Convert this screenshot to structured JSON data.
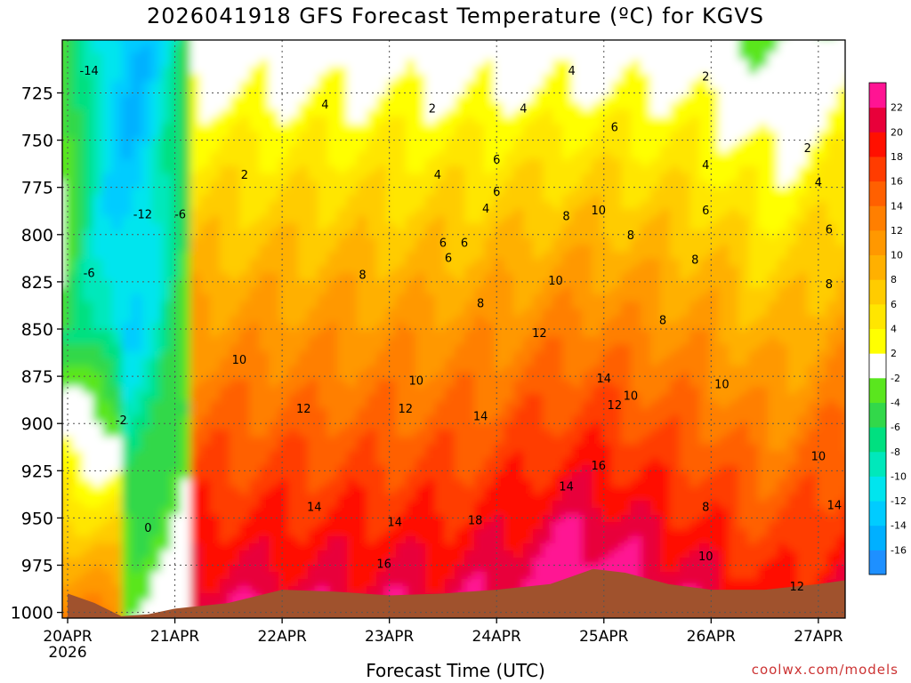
{
  "header": {
    "title": "2026041918 GFS Forecast Temperature (ºC) for KGVS"
  },
  "footer": {
    "xlabel": "Forecast Time (UTC)",
    "credit": "coolwx.com/models"
  },
  "chart_data": {
    "type": "heatmap",
    "title": "2026041918 GFS Forecast Temperature (ºC) for KGVS",
    "xlabel": "Forecast Time (UTC)",
    "ylabel": "",
    "x_ticks": [
      {
        "day": 0,
        "label": "20APR",
        "sublabel": "2026"
      },
      {
        "day": 1,
        "label": "21APR"
      },
      {
        "day": 2,
        "label": "22APR"
      },
      {
        "day": 3,
        "label": "23APR"
      },
      {
        "day": 4,
        "label": "24APR"
      },
      {
        "day": 5,
        "label": "25APR"
      },
      {
        "day": 6,
        "label": "26APR"
      },
      {
        "day": 7,
        "label": "27APR"
      }
    ],
    "xlim_days": [
      -0.05,
      7.25
    ],
    "y_ticks": [
      725,
      750,
      775,
      800,
      825,
      850,
      875,
      900,
      925,
      950,
      975,
      1000
    ],
    "ylim": [
      1003,
      697
    ],
    "grid": true,
    "colorbar": {
      "levels": [
        -16,
        -14,
        -12,
        -10,
        -8,
        -6,
        -4,
        -2,
        2,
        4,
        6,
        8,
        10,
        12,
        14,
        16,
        18,
        20,
        22
      ],
      "colors": [
        "#1e90ff",
        "#00b0ff",
        "#00ccff",
        "#00e5ee",
        "#00e8bb",
        "#00e080",
        "#32d84a",
        "#5ae61e",
        "#ffffff",
        "#ffff00",
        "#ffe600",
        "#ffcc00",
        "#ffb000",
        "#ff9800",
        "#ff7f00",
        "#ff6000",
        "#ff3c00",
        "#ff1000",
        "#e8003a",
        "#ff1493"
      ]
    },
    "surface_pressure": [
      {
        "day": 0.0,
        "p": 990
      },
      {
        "day": 0.25,
        "p": 995
      },
      {
        "day": 0.5,
        "p": 1002
      },
      {
        "day": 0.75,
        "p": 1001
      },
      {
        "day": 1.0,
        "p": 998
      },
      {
        "day": 1.5,
        "p": 995
      },
      {
        "day": 2.0,
        "p": 988
      },
      {
        "day": 2.5,
        "p": 989
      },
      {
        "day": 3.0,
        "p": 991
      },
      {
        "day": 3.5,
        "p": 990
      },
      {
        "day": 4.0,
        "p": 988
      },
      {
        "day": 4.5,
        "p": 985
      },
      {
        "day": 4.9,
        "p": 977
      },
      {
        "day": 5.2,
        "p": 979
      },
      {
        "day": 5.6,
        "p": 985
      },
      {
        "day": 6.0,
        "p": 988
      },
      {
        "day": 6.5,
        "p": 988
      },
      {
        "day": 7.0,
        "p": 985
      },
      {
        "day": 7.25,
        "p": 983
      }
    ],
    "contour_labels": [
      {
        "day": 0.2,
        "p": 713,
        "v": "-14"
      },
      {
        "day": 0.7,
        "p": 789,
        "v": "-12"
      },
      {
        "day": 1.05,
        "p": 789,
        "v": "-6"
      },
      {
        "day": 0.2,
        "p": 820,
        "v": "-6"
      },
      {
        "day": 0.5,
        "p": 898,
        "v": "-2"
      },
      {
        "day": 0.75,
        "p": 955,
        "v": "0"
      },
      {
        "day": 1.65,
        "p": 768,
        "v": "2"
      },
      {
        "day": 2.4,
        "p": 731,
        "v": "4"
      },
      {
        "day": 3.4,
        "p": 733,
        "v": "2"
      },
      {
        "day": 3.45,
        "p": 768,
        "v": "4"
      },
      {
        "day": 4.0,
        "p": 777,
        "v": "6"
      },
      {
        "day": 4.25,
        "p": 733,
        "v": "4"
      },
      {
        "day": 4.0,
        "p": 760,
        "v": "6"
      },
      {
        "day": 3.9,
        "p": 786,
        "v": "4"
      },
      {
        "day": 3.5,
        "p": 804,
        "v": "6"
      },
      {
        "day": 3.7,
        "p": 804,
        "v": "6"
      },
      {
        "day": 3.55,
        "p": 812,
        "v": "6"
      },
      {
        "day": 4.7,
        "p": 713,
        "v": "4"
      },
      {
        "day": 5.95,
        "p": 716,
        "v": "2"
      },
      {
        "day": 5.1,
        "p": 743,
        "v": "6"
      },
      {
        "day": 4.65,
        "p": 790,
        "v": "8"
      },
      {
        "day": 4.95,
        "p": 787,
        "v": "10"
      },
      {
        "day": 5.25,
        "p": 800,
        "v": "8"
      },
      {
        "day": 5.95,
        "p": 787,
        "v": "6"
      },
      {
        "day": 6.9,
        "p": 754,
        "v": "2"
      },
      {
        "day": 5.95,
        "p": 763,
        "v": "4"
      },
      {
        "day": 7.0,
        "p": 772,
        "v": "4"
      },
      {
        "day": 7.1,
        "p": 797,
        "v": "6"
      },
      {
        "day": 5.85,
        "p": 813,
        "v": "8"
      },
      {
        "day": 2.75,
        "p": 821,
        "v": "8"
      },
      {
        "day": 3.85,
        "p": 836,
        "v": "8"
      },
      {
        "day": 4.55,
        "p": 824,
        "v": "10"
      },
      {
        "day": 4.4,
        "p": 852,
        "v": "12"
      },
      {
        "day": 5.55,
        "p": 845,
        "v": "8"
      },
      {
        "day": 7.1,
        "p": 826,
        "v": "8"
      },
      {
        "day": 1.6,
        "p": 866,
        "v": "10"
      },
      {
        "day": 3.25,
        "p": 877,
        "v": "10"
      },
      {
        "day": 5.0,
        "p": 876,
        "v": "14"
      },
      {
        "day": 5.25,
        "p": 885,
        "v": "10"
      },
      {
        "day": 5.1,
        "p": 890,
        "v": "12"
      },
      {
        "day": 6.1,
        "p": 879,
        "v": "10"
      },
      {
        "day": 2.2,
        "p": 892,
        "v": "12"
      },
      {
        "day": 3.15,
        "p": 892,
        "v": "12"
      },
      {
        "day": 3.85,
        "p": 896,
        "v": "14"
      },
      {
        "day": 4.95,
        "p": 922,
        "v": "16"
      },
      {
        "day": 4.65,
        "p": 933,
        "v": "14"
      },
      {
        "day": 7.0,
        "p": 917,
        "v": "10"
      },
      {
        "day": 7.15,
        "p": 943,
        "v": "14"
      },
      {
        "day": 2.3,
        "p": 944,
        "v": "14"
      },
      {
        "day": 3.05,
        "p": 952,
        "v": "14"
      },
      {
        "day": 3.8,
        "p": 951,
        "v": "18"
      },
      {
        "day": 5.95,
        "p": 944,
        "v": "8"
      },
      {
        "day": 2.95,
        "p": 974,
        "v": "16"
      },
      {
        "day": 5.95,
        "p": 970,
        "v": "10"
      },
      {
        "day": 6.8,
        "p": 986,
        "v": "12"
      }
    ]
  }
}
